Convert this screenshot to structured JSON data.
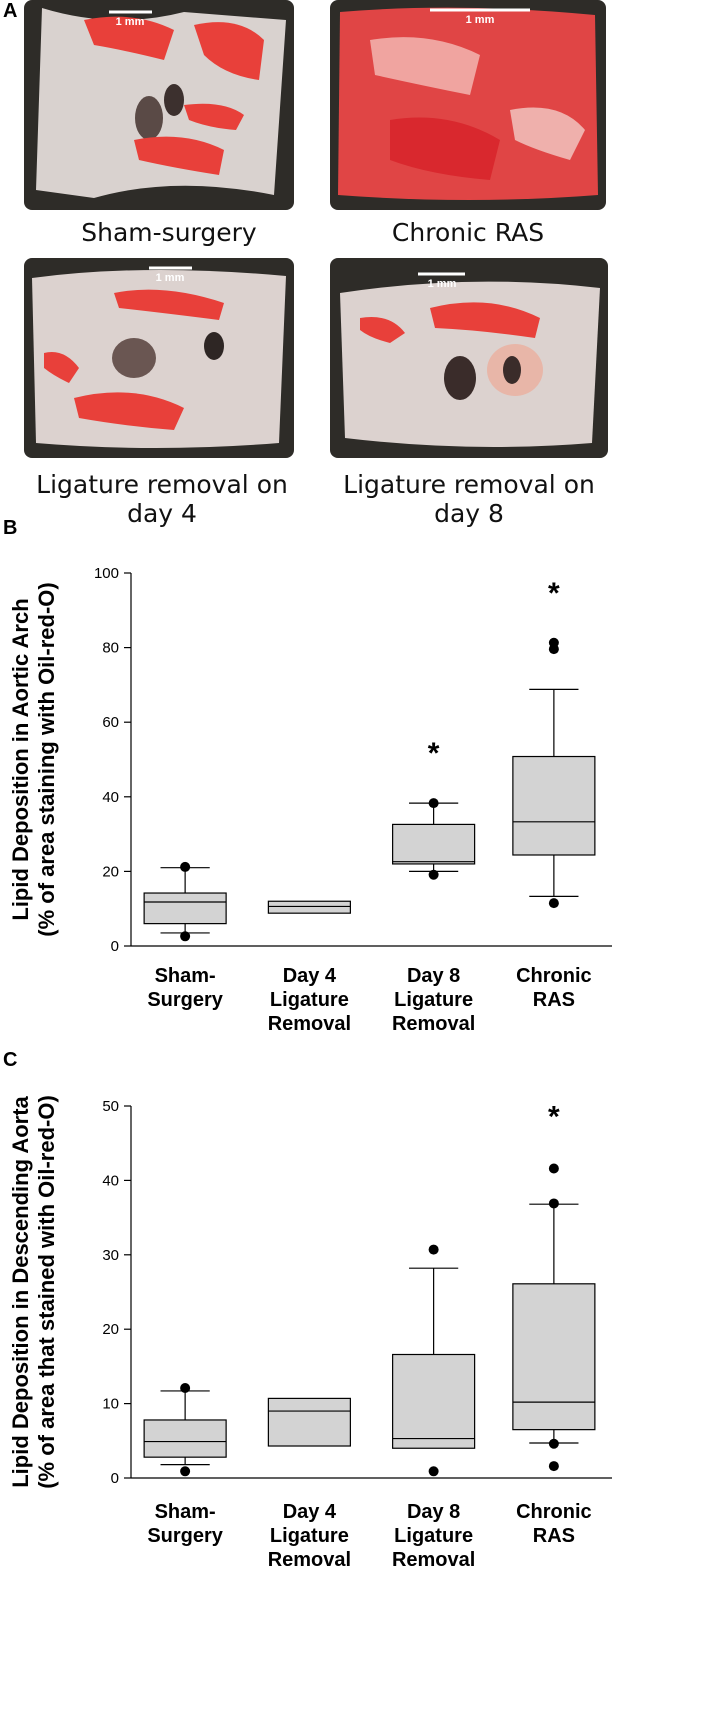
{
  "panels": {
    "a": "A",
    "b": "B",
    "c": "C"
  },
  "photos": [
    {
      "caption": "Sham-surgery",
      "scale_label": "1 mm",
      "tissue_color": "#d9d2cf",
      "stain_color": "#e8403a"
    },
    {
      "caption": "Chronic RAS",
      "scale_label": "1 mm",
      "tissue_color": "#e04545",
      "stain_color": "#d9282e"
    },
    {
      "caption": "Ligature removal on day 4",
      "scale_label": "1 mm",
      "tissue_color": "#dcd2cf",
      "stain_color": "#e8403a"
    },
    {
      "caption": "Ligature removal on day 8",
      "scale_label": "1 mm",
      "tissue_color": "#dcd2cf",
      "stain_color": "#e8403a"
    }
  ],
  "colors": {
    "box_fill": "#d3d3d3",
    "stroke": "#000000",
    "photo_background": "#2e2c28"
  },
  "chart_data": [
    {
      "type": "box",
      "ylabel_line1": "Lipid Deposition in Aortic Arch",
      "ylabel_line2": "(% of area staining with Oil-red-O)",
      "ylim": [
        0,
        100
      ],
      "yticks": [
        0,
        20,
        40,
        60,
        80,
        100
      ],
      "categories": [
        [
          "Sham-",
          "Surgery"
        ],
        [
          "Day 4",
          "Ligature",
          "Removal"
        ],
        [
          "Day 8",
          "Ligature",
          "Removal"
        ],
        [
          "Chronic",
          "RAS"
        ]
      ],
      "boxes": [
        {
          "whisker_low": 3.5,
          "q1": 6,
          "median": 11.8,
          "q3": 14.2,
          "whisker_high": 21,
          "outliers": [
            21.2,
            2.6
          ],
          "significance": ""
        },
        {
          "whisker_low": null,
          "q1": 8.8,
          "median": 10.6,
          "q3": 12.0,
          "whisker_high": null,
          "outliers": [],
          "significance": ""
        },
        {
          "whisker_low": 20,
          "q1": 22,
          "median": 22.6,
          "q3": 32.6,
          "whisker_high": 38.3,
          "outliers": [
            38.3,
            19.1
          ],
          "significance": "*"
        },
        {
          "whisker_low": 13.3,
          "q1": 24.4,
          "median": 33.3,
          "q3": 50.8,
          "whisker_high": 68.8,
          "outliers": [
            81.3,
            79.6,
            11.5
          ],
          "significance": "*"
        }
      ]
    },
    {
      "type": "box",
      "ylabel_line1": "Lipid Deposition in Descending Aorta",
      "ylabel_line2": "(% of area that stained with Oil-red-O)",
      "ylim": [
        0,
        50
      ],
      "yticks": [
        0,
        10,
        20,
        30,
        40,
        50
      ],
      "categories": [
        [
          "Sham-",
          "Surgery"
        ],
        [
          "Day 4",
          "Ligature",
          "Removal"
        ],
        [
          "Day 8",
          "Ligature",
          "Removal"
        ],
        [
          "Chronic",
          "RAS"
        ]
      ],
      "boxes": [
        {
          "whisker_low": 1.8,
          "q1": 2.8,
          "median": 4.9,
          "q3": 7.8,
          "whisker_high": 11.7,
          "outliers": [
            12.1,
            0.9
          ],
          "significance": ""
        },
        {
          "whisker_low": null,
          "q1": 4.3,
          "median": 9.0,
          "q3": 10.7,
          "whisker_high": null,
          "outliers": [],
          "significance": ""
        },
        {
          "whisker_low": null,
          "q1": 4.0,
          "median": 5.3,
          "q3": 16.6,
          "whisker_high": 28.2,
          "outliers": [
            30.7,
            0.9
          ],
          "significance": ""
        },
        {
          "whisker_low": 4.7,
          "q1": 6.5,
          "median": 10.2,
          "q3": 26.1,
          "whisker_high": 36.8,
          "outliers": [
            41.6,
            36.9,
            4.6,
            1.6
          ],
          "significance": "*"
        }
      ]
    }
  ]
}
